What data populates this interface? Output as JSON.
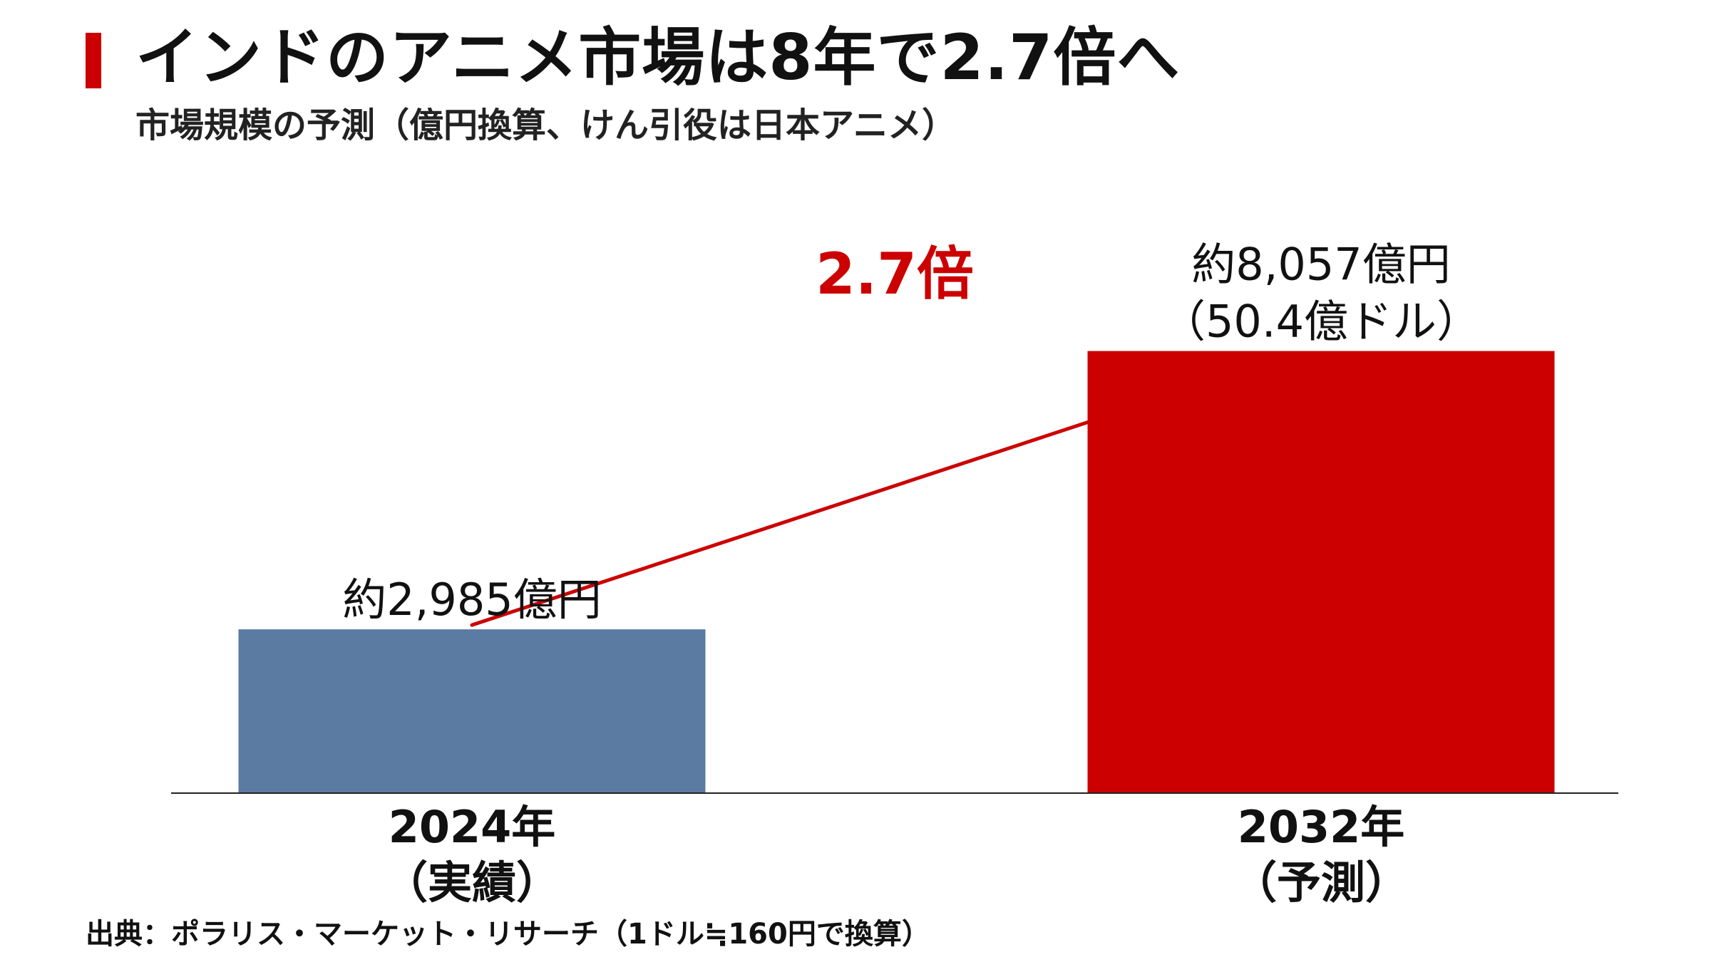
{
  "header": {
    "title": "インドのアニメ市場は8年で2.7倍へ",
    "subtitle": "市場規模の予測（億円換算、けん引役は日本アニメ）"
  },
  "footer": {
    "source": "出典：ポラリス・マーケット・リサーチ（1ドル≒160円で換算）"
  },
  "colors": {
    "accent": "#cc0000",
    "bar_actual": "#5b7ba3",
    "bar_forecast": "#cc0000",
    "axis": "#222222",
    "text": "#111111"
  },
  "chart_data": {
    "type": "bar",
    "title": "インドのアニメ市場は8年で2.7倍へ",
    "subtitle": "市場規模の予測（億円換算、けん引役は日本アニメ）",
    "unit": "億円",
    "ylim": [
      0,
      9000
    ],
    "grid": false,
    "categories": [
      {
        "line1": "2024年",
        "line2": "（実績）"
      },
      {
        "line1": "2032年",
        "line2": "（予測）"
      }
    ],
    "values": [
      2985,
      8057
    ],
    "data_labels": [
      [
        "約2,985億円"
      ],
      [
        "約8,057億円",
        "（50.4億ドル）"
      ]
    ],
    "annotation": {
      "text": "2.7倍",
      "type": "growth-line"
    }
  }
}
